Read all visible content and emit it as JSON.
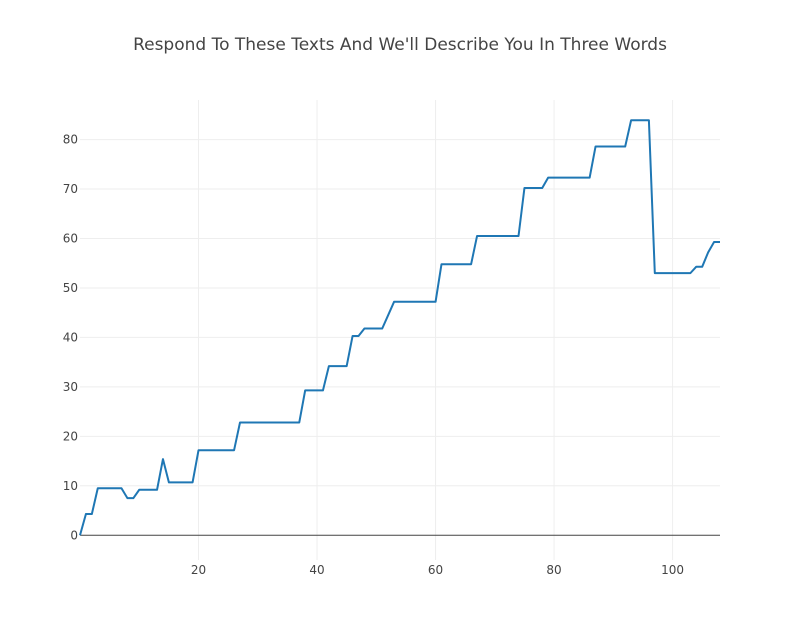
{
  "chart_data": {
    "type": "line",
    "title": "Respond To These Texts And We'll Describe You In Three Words",
    "xlabel": "",
    "ylabel": "",
    "xlim": [
      0,
      108
    ],
    "ylim": [
      -5,
      88
    ],
    "x_ticks": [
      20,
      40,
      60,
      80,
      100
    ],
    "y_ticks": [
      0,
      10,
      20,
      30,
      40,
      50,
      60,
      70,
      80
    ],
    "grid": true,
    "line_shape": "stepped",
    "colors": {
      "series": "#1f77b4",
      "grid": "#eeeeee",
      "zero_line": "#444444",
      "text": "#444444"
    },
    "series": [
      {
        "points": [
          [
            0,
            0
          ],
          [
            1,
            4.3
          ],
          [
            2,
            4.3
          ],
          [
            3,
            9.5
          ],
          [
            4,
            9.5
          ],
          [
            5,
            9.5
          ],
          [
            6,
            9.5
          ],
          [
            7,
            9.5
          ],
          [
            8,
            7.5
          ],
          [
            9,
            7.5
          ],
          [
            10,
            9.2
          ],
          [
            11,
            9.2
          ],
          [
            12,
            9.2
          ],
          [
            13,
            9.2
          ],
          [
            14,
            15.4
          ],
          [
            15,
            10.7
          ],
          [
            16,
            10.7
          ],
          [
            17,
            10.7
          ],
          [
            18,
            10.7
          ],
          [
            19,
            10.7
          ],
          [
            20,
            17.2
          ],
          [
            21,
            17.2
          ],
          [
            22,
            17.2
          ],
          [
            23,
            17.2
          ],
          [
            24,
            17.2
          ],
          [
            25,
            17.2
          ],
          [
            26,
            17.2
          ],
          [
            27,
            22.8
          ],
          [
            28,
            22.8
          ],
          [
            29,
            22.8
          ],
          [
            30,
            22.8
          ],
          [
            31,
            22.8
          ],
          [
            32,
            22.8
          ],
          [
            33,
            22.8
          ],
          [
            34,
            22.8
          ],
          [
            35,
            22.8
          ],
          [
            36,
            22.8
          ],
          [
            37,
            22.8
          ],
          [
            38,
            29.3
          ],
          [
            39,
            29.3
          ],
          [
            40,
            29.3
          ],
          [
            41,
            29.3
          ],
          [
            42,
            34.2
          ],
          [
            43,
            34.2
          ],
          [
            44,
            34.2
          ],
          [
            45,
            34.2
          ],
          [
            46,
            40.3
          ],
          [
            47,
            40.3
          ],
          [
            48,
            41.8
          ],
          [
            49,
            41.8
          ],
          [
            50,
            41.8
          ],
          [
            51,
            41.8
          ],
          [
            52,
            44.5
          ],
          [
            53,
            47.2
          ],
          [
            54,
            47.2
          ],
          [
            55,
            47.2
          ],
          [
            56,
            47.2
          ],
          [
            57,
            47.2
          ],
          [
            58,
            47.2
          ],
          [
            59,
            47.2
          ],
          [
            60,
            47.2
          ],
          [
            61,
            54.8
          ],
          [
            62,
            54.8
          ],
          [
            63,
            54.8
          ],
          [
            64,
            54.8
          ],
          [
            65,
            54.8
          ],
          [
            66,
            54.8
          ],
          [
            67,
            60.5
          ],
          [
            68,
            60.5
          ],
          [
            69,
            60.5
          ],
          [
            70,
            60.5
          ],
          [
            71,
            60.5
          ],
          [
            72,
            60.5
          ],
          [
            73,
            60.5
          ],
          [
            74,
            60.5
          ],
          [
            75,
            70.2
          ],
          [
            76,
            70.2
          ],
          [
            77,
            70.2
          ],
          [
            78,
            70.2
          ],
          [
            79,
            72.3
          ],
          [
            80,
            72.3
          ],
          [
            81,
            72.3
          ],
          [
            82,
            72.3
          ],
          [
            83,
            72.3
          ],
          [
            84,
            72.3
          ],
          [
            85,
            72.3
          ],
          [
            86,
            72.3
          ],
          [
            87,
            78.6
          ],
          [
            88,
            78.6
          ],
          [
            89,
            78.6
          ],
          [
            90,
            78.6
          ],
          [
            91,
            78.6
          ],
          [
            92,
            78.6
          ],
          [
            93,
            83.9
          ],
          [
            94,
            83.9
          ],
          [
            95,
            83.9
          ],
          [
            96,
            83.9
          ],
          [
            97,
            53.0
          ],
          [
            98,
            53.0
          ],
          [
            99,
            53.0
          ],
          [
            100,
            53.0
          ],
          [
            101,
            53.0
          ],
          [
            102,
            53.0
          ],
          [
            103,
            53.0
          ],
          [
            104,
            54.3
          ],
          [
            105,
            54.3
          ],
          [
            106,
            57.2
          ],
          [
            107,
            59.3
          ],
          [
            108,
            59.3
          ]
        ]
      }
    ]
  }
}
